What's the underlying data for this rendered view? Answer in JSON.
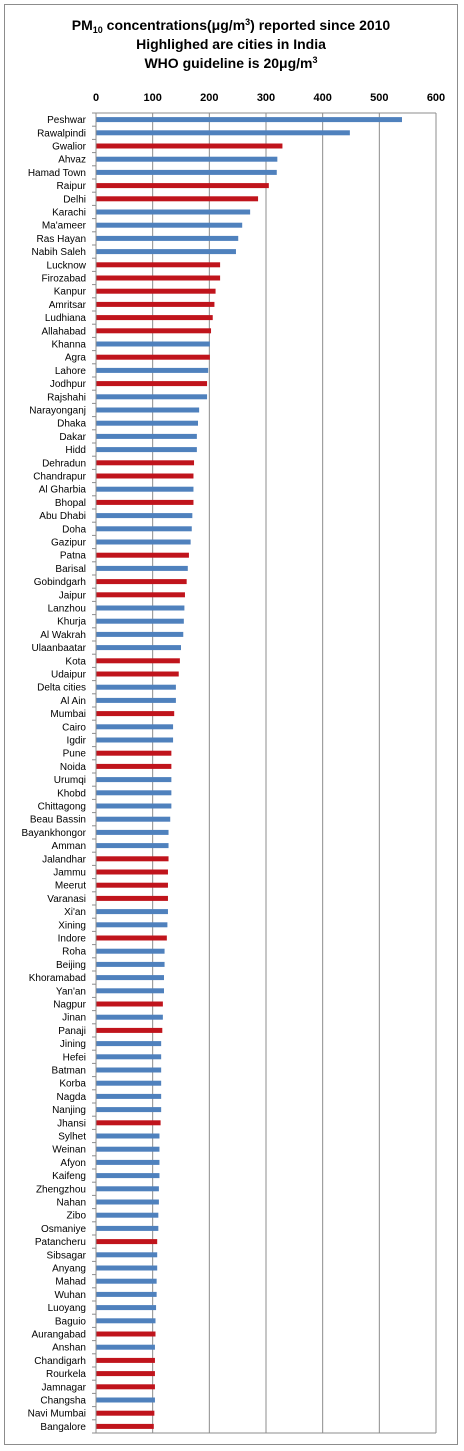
{
  "title": {
    "line1_pre": "PM",
    "line1_sub": "10",
    "line1_mid": " concentrations(μg/m",
    "line1_sup": "3",
    "line1_post": ") reported since 2010",
    "line2": "Highlighed are cities in India",
    "line3_pre": "WHO guideline is 20μg/m",
    "line3_sup": "3"
  },
  "colors": {
    "india": "#c0141c",
    "other": "#4f81bd",
    "grid": "#8c8c8c"
  },
  "chart_data": {
    "type": "bar",
    "orientation": "horizontal",
    "xlim": [
      0,
      600
    ],
    "xticks": [
      0,
      100,
      200,
      300,
      400,
      500,
      600
    ],
    "grid": true,
    "categories": [
      "Peshwar",
      "Rawalpindi",
      "Gwalior",
      "Ahvaz",
      "Hamad Town",
      "Raipur",
      "Delhi",
      "Karachi",
      "Ma'ameer",
      "Ras Hayan",
      "Nabih Saleh",
      "Lucknow",
      "Firozabad",
      "Kanpur",
      "Amritsar",
      "Ludhiana",
      "Allahabad",
      "Khanna",
      "Agra",
      "Lahore",
      "Jodhpur",
      "Rajshahi",
      "Narayonganj",
      "Dhaka",
      "Dakar",
      "Hidd",
      "Dehradun",
      "Chandrapur",
      "Al Gharbia",
      "Bhopal",
      "Abu Dhabi",
      "Doha",
      "Gazipur",
      "Patna",
      "Barisal",
      "Gobindgarh",
      "Jaipur",
      "Lanzhou",
      "Khurja",
      "Al Wakrah",
      "Ulaanbaatar",
      "Kota",
      "Udaipur",
      "Delta cities",
      "Al Ain",
      "Mumbai",
      "Cairo",
      "Igdir",
      "Pune",
      "Noida",
      "Urumqi",
      "Khobd",
      "Chittagong",
      "Beau Bassin",
      "Bayankhongor",
      "Amman",
      "Jalandhar",
      "Jammu",
      "Meerut",
      "Varanasi",
      "Xi'an",
      "Xining",
      "Indore",
      "Roha",
      "Beijing",
      "Khoramabad",
      "Yan'an",
      "Nagpur",
      "Jinan",
      "Panaji",
      "Jining",
      "Hefei",
      "Batman",
      "Korba",
      "Nagda",
      "Nanjing",
      "Jhansi",
      "Sylhet",
      "Weinan",
      "Afyon",
      "Kaifeng",
      "Zhengzhou",
      "Nahan",
      "Zibo",
      "Osmaniye",
      "Patancheru",
      "Sibsagar",
      "Anyang",
      "Mahad",
      "Wuhan",
      "Luoyang",
      "Baguio",
      "Aurangabad",
      "Anshan",
      "Chandigarh",
      "Rourkela",
      "Jamnagar",
      "Changsha",
      "Navi Mumbai",
      "Bangalore"
    ],
    "values": [
      540,
      448,
      329,
      320,
      319,
      305,
      286,
      272,
      258,
      251,
      247,
      219,
      219,
      211,
      209,
      206,
      203,
      201,
      201,
      198,
      196,
      196,
      182,
      180,
      178,
      178,
      173,
      172,
      172,
      172,
      170,
      169,
      167,
      164,
      162,
      160,
      157,
      156,
      155,
      154,
      150,
      148,
      146,
      141,
      141,
      138,
      136,
      136,
      133,
      133,
      133,
      133,
      133,
      131,
      128,
      128,
      128,
      127,
      127,
      127,
      127,
      126,
      125,
      121,
      121,
      120,
      120,
      118,
      118,
      117,
      115,
      115,
      115,
      115,
      115,
      115,
      114,
      112,
      112,
      112,
      112,
      111,
      111,
      110,
      110,
      108,
      108,
      108,
      107,
      107,
      106,
      105,
      105,
      104,
      104,
      104,
      104,
      104,
      103,
      102
    ],
    "india": [
      false,
      false,
      true,
      false,
      false,
      true,
      true,
      false,
      false,
      false,
      false,
      true,
      true,
      true,
      true,
      true,
      true,
      false,
      true,
      false,
      true,
      false,
      false,
      false,
      false,
      false,
      true,
      true,
      false,
      true,
      false,
      false,
      false,
      true,
      false,
      true,
      true,
      false,
      false,
      false,
      false,
      true,
      true,
      false,
      false,
      true,
      false,
      false,
      true,
      true,
      false,
      false,
      false,
      false,
      false,
      false,
      true,
      true,
      true,
      true,
      false,
      false,
      true,
      false,
      false,
      false,
      false,
      true,
      false,
      true,
      false,
      false,
      false,
      false,
      false,
      false,
      true,
      false,
      false,
      false,
      false,
      false,
      false,
      false,
      false,
      true,
      false,
      false,
      false,
      false,
      false,
      false,
      true,
      false,
      true,
      true,
      true,
      false,
      true,
      true
    ],
    "legend": "none"
  }
}
